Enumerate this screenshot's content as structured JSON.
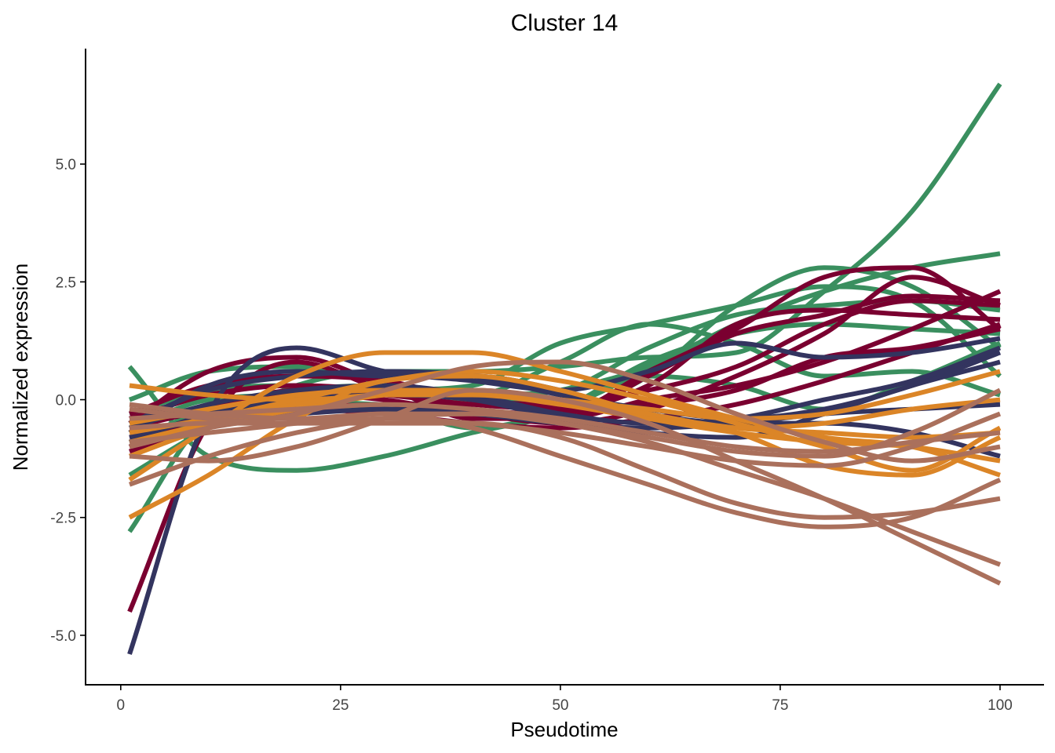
{
  "chart_data": {
    "type": "line",
    "title": "Cluster 14",
    "xlabel": "Pseudotime",
    "ylabel": "Normalized expression",
    "xlim": [
      -4,
      105
    ],
    "ylim": [
      -6.05,
      7.45
    ],
    "x_ticks": [
      0,
      25,
      50,
      75,
      100
    ],
    "x_tick_labels": [
      "0",
      "25",
      "50",
      "75",
      "100"
    ],
    "y_ticks": [
      -5.0,
      -2.5,
      0.0,
      2.5,
      5.0
    ],
    "y_tick_labels": [
      "-5.0",
      "-2.5",
      "0.0",
      "2.5",
      "5.0"
    ],
    "grid": false,
    "legend": "none",
    "x": [
      1,
      10,
      20,
      30,
      40,
      50,
      60,
      70,
      80,
      90,
      100
    ],
    "series": [
      {
        "color": "#3A8F5F",
        "values": [
          -1.6,
          -0.6,
          0.3,
          0.6,
          0.6,
          0.7,
          0.9,
          1.0,
          2.3,
          4.0,
          6.7
        ]
      },
      {
        "color": "#3A8F5F",
        "values": [
          -2.8,
          -0.4,
          0.0,
          -0.1,
          0.0,
          0.2,
          0.7,
          1.6,
          2.3,
          2.8,
          3.1
        ]
      },
      {
        "color": "#3A8F5F",
        "values": [
          0.7,
          -1.2,
          -1.5,
          -1.2,
          -0.7,
          -0.3,
          0.5,
          2.0,
          2.8,
          2.4,
          1.1
        ]
      },
      {
        "color": "#3A8F5F",
        "values": [
          0.0,
          0.6,
          0.7,
          0.3,
          0.1,
          0.2,
          1.1,
          1.8,
          2.0,
          2.1,
          1.9
        ]
      },
      {
        "color": "#3A8F5F",
        "values": [
          -0.3,
          0.2,
          0.3,
          0.2,
          0.1,
          0.8,
          1.6,
          1.2,
          0.5,
          0.6,
          0.1
        ]
      },
      {
        "color": "#3A8F5F",
        "values": [
          -1.0,
          -0.4,
          -0.2,
          -0.2,
          -0.6,
          -0.2,
          0.8,
          1.4,
          1.6,
          1.5,
          1.4
        ]
      },
      {
        "color": "#3A8F5F",
        "values": [
          -0.6,
          0.0,
          0.1,
          0.2,
          0.3,
          1.2,
          1.6,
          2.0,
          2.4,
          2.1,
          0.5
        ]
      },
      {
        "color": "#3A8F5F",
        "values": [
          -0.9,
          -0.2,
          0.2,
          0.3,
          0.1,
          -0.1,
          0.5,
          0.3,
          -0.2,
          0.4,
          1.2
        ]
      },
      {
        "color": "#7A0030",
        "values": [
          -4.5,
          -0.5,
          0.8,
          0.2,
          -0.2,
          -0.3,
          0.6,
          1.5,
          2.6,
          2.8,
          1.5
        ]
      },
      {
        "color": "#7A0030",
        "values": [
          -0.5,
          0.6,
          0.9,
          0.3,
          -0.4,
          -0.4,
          0.5,
          1.4,
          1.8,
          2.2,
          2.1
        ]
      },
      {
        "color": "#7A0030",
        "values": [
          -0.3,
          0.3,
          0.5,
          0.4,
          0.0,
          -0.1,
          0.2,
          0.7,
          1.6,
          2.1,
          2.0
        ]
      },
      {
        "color": "#7A0030",
        "values": [
          -1.0,
          -0.3,
          0.1,
          0.0,
          -0.3,
          -0.4,
          0.0,
          0.3,
          0.8,
          1.5,
          2.3
        ]
      },
      {
        "color": "#7A0030",
        "values": [
          -0.6,
          -0.2,
          0.2,
          0.1,
          -0.1,
          -0.2,
          0.3,
          1.6,
          1.9,
          1.8,
          1.7
        ]
      },
      {
        "color": "#7A0030",
        "values": [
          -0.8,
          -0.4,
          -0.2,
          -0.1,
          -0.3,
          -0.5,
          -0.2,
          0.5,
          1.4,
          2.6,
          2.0
        ]
      },
      {
        "color": "#7A0030",
        "values": [
          -0.4,
          0.1,
          0.3,
          0.2,
          0.0,
          -0.2,
          -0.1,
          0.2,
          0.9,
          1.1,
          1.5
        ]
      },
      {
        "color": "#7A0030",
        "values": [
          -1.1,
          -0.5,
          -0.2,
          -0.3,
          -0.5,
          -0.6,
          -0.4,
          -0.1,
          0.4,
          1.0,
          1.6
        ]
      },
      {
        "color": "#33345F",
        "values": [
          -5.4,
          -0.3,
          1.1,
          0.6,
          0.4,
          0.2,
          0.6,
          1.2,
          0.9,
          1.0,
          1.3
        ]
      },
      {
        "color": "#33345F",
        "values": [
          -0.7,
          0.3,
          0.6,
          0.5,
          0.5,
          0.2,
          -0.3,
          -0.5,
          -0.5,
          -0.7,
          -1.2
        ]
      },
      {
        "color": "#33345F",
        "values": [
          -0.5,
          0.2,
          0.5,
          0.6,
          0.5,
          0.1,
          -0.2,
          -0.4,
          -0.2,
          0.3,
          1.0
        ]
      },
      {
        "color": "#33345F",
        "values": [
          -0.9,
          -0.3,
          0.0,
          0.1,
          0.0,
          -0.4,
          -0.7,
          -0.8,
          -0.3,
          0.3,
          0.8
        ]
      },
      {
        "color": "#33345F",
        "values": [
          -0.6,
          -0.1,
          0.2,
          0.3,
          0.1,
          -0.3,
          -0.5,
          -0.4,
          0.0,
          0.4,
          1.1
        ]
      },
      {
        "color": "#33345F",
        "values": [
          -0.8,
          -0.4,
          -0.3,
          -0.2,
          -0.3,
          -0.5,
          -0.6,
          -0.5,
          -0.3,
          -0.2,
          -0.1
        ]
      },
      {
        "color": "#DB8527",
        "values": [
          0.3,
          0.1,
          0.0,
          0.1,
          0.2,
          0.0,
          -0.4,
          -0.7,
          -0.9,
          -1.0,
          -1.3
        ]
      },
      {
        "color": "#DB8527",
        "values": [
          -2.5,
          -1.6,
          -0.4,
          0.4,
          0.5,
          0.2,
          -0.3,
          -0.6,
          -0.7,
          -0.8,
          -0.7
        ]
      },
      {
        "color": "#DB8527",
        "values": [
          -1.7,
          -0.6,
          0.5,
          1.0,
          1.0,
          0.6,
          0.1,
          -0.4,
          -0.8,
          -1.0,
          -1.6
        ]
      },
      {
        "color": "#DB8527",
        "values": [
          -0.7,
          -0.4,
          0.0,
          0.4,
          0.6,
          0.4,
          0.0,
          -0.5,
          -1.0,
          -1.5,
          -0.6
        ]
      },
      {
        "color": "#DB8527",
        "values": [
          -1.2,
          -0.6,
          -0.2,
          0.1,
          0.2,
          0.0,
          -0.3,
          -0.7,
          -1.4,
          -1.6,
          -0.8
        ]
      },
      {
        "color": "#DB8527",
        "values": [
          -0.9,
          -0.5,
          -0.1,
          0.1,
          0.1,
          -0.1,
          -0.4,
          -0.6,
          -0.5,
          -0.2,
          0.0
        ]
      },
      {
        "color": "#DB8527",
        "values": [
          -0.5,
          -0.2,
          0.1,
          0.2,
          0.2,
          0.0,
          -0.2,
          -0.4,
          -0.3,
          0.1,
          0.6
        ]
      },
      {
        "color": "#AA705C",
        "values": [
          -0.2,
          -0.4,
          -0.5,
          -0.5,
          -0.5,
          -0.8,
          -1.5,
          -2.2,
          -2.5,
          -2.4,
          -2.1
        ]
      },
      {
        "color": "#AA705C",
        "values": [
          -0.1,
          -0.3,
          -0.4,
          -0.3,
          -0.6,
          -1.2,
          -1.8,
          -2.4,
          -2.7,
          -2.5,
          -1.7
        ]
      },
      {
        "color": "#AA705C",
        "values": [
          -1.8,
          -1.2,
          -0.7,
          -0.4,
          -0.3,
          -0.5,
          -0.9,
          -1.5,
          -2.1,
          -2.8,
          -3.5
        ]
      },
      {
        "color": "#AA705C",
        "values": [
          -1.2,
          -1.3,
          -1.0,
          -0.4,
          0.2,
          0.0,
          -0.5,
          -1.3,
          -2.1,
          -3.0,
          -3.9
        ]
      },
      {
        "color": "#AA705C",
        "values": [
          -1.0,
          -0.6,
          -0.3,
          0.2,
          0.7,
          0.8,
          0.4,
          -0.3,
          -0.9,
          -1.3,
          -1.0
        ]
      },
      {
        "color": "#AA705C",
        "values": [
          -0.6,
          -0.5,
          -0.5,
          -0.4,
          -0.5,
          -0.7,
          -1.0,
          -1.3,
          -1.4,
          -1.0,
          -0.3
        ]
      },
      {
        "color": "#AA705C",
        "values": [
          -0.9,
          -0.7,
          -0.5,
          -0.3,
          -0.3,
          -0.5,
          -0.8,
          -1.1,
          -1.2,
          -0.7,
          0.2
        ]
      },
      {
        "color": "#AA705C",
        "values": [
          -0.4,
          -0.3,
          -0.2,
          -0.1,
          -0.2,
          -0.4,
          -0.7,
          -1.0,
          -1.1,
          -0.9,
          -0.7
        ]
      }
    ]
  }
}
